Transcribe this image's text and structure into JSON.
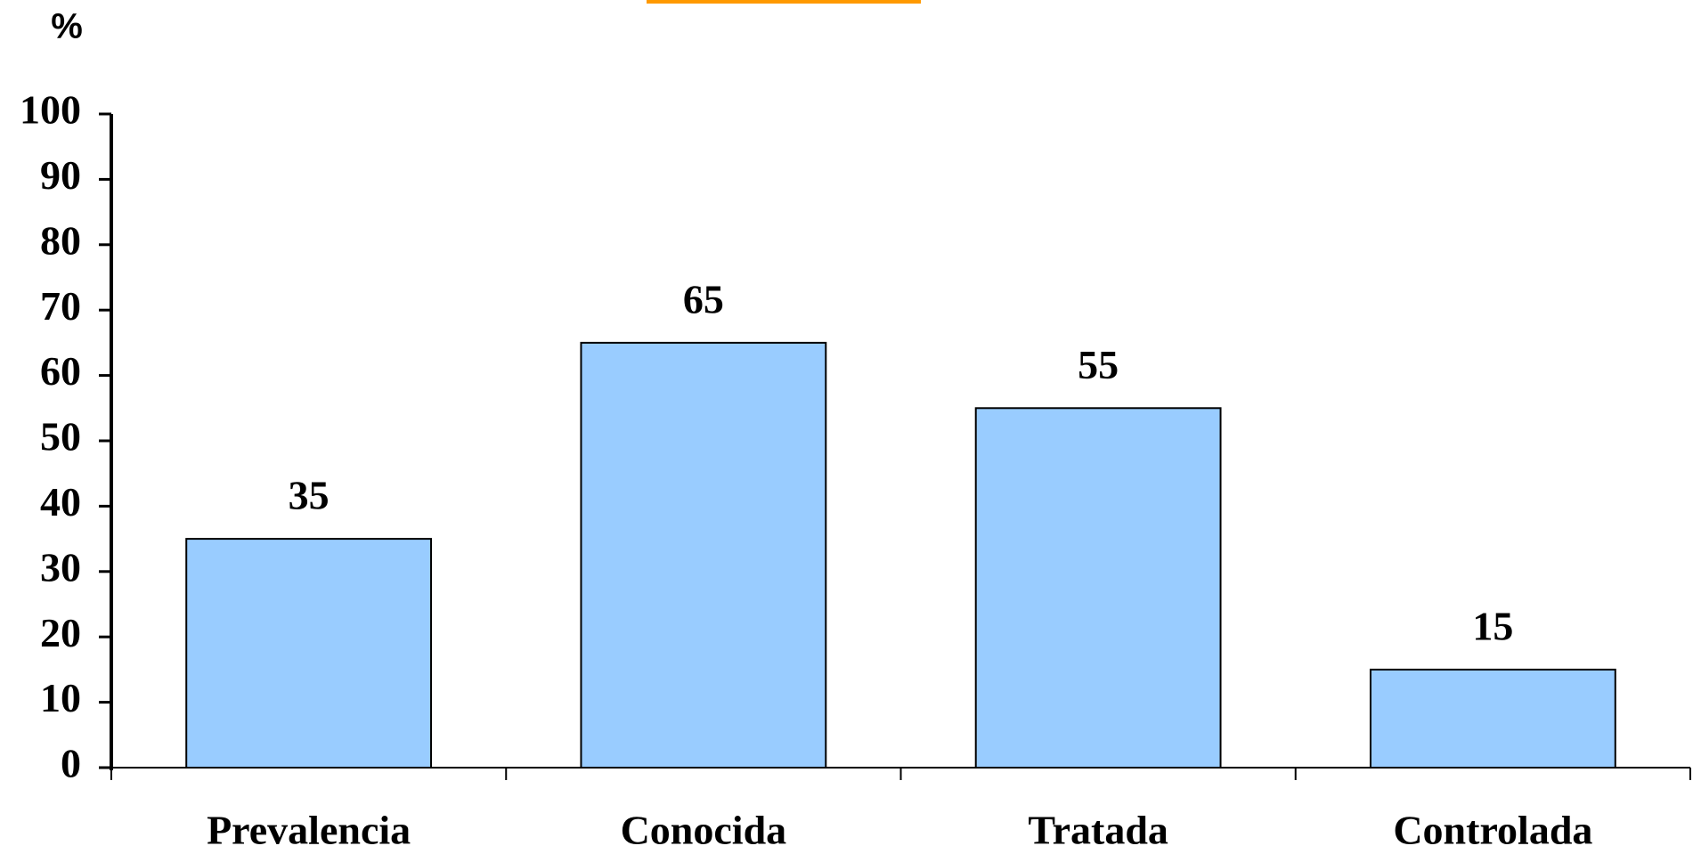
{
  "chart_data": {
    "type": "bar",
    "y_label": "%",
    "categories": [
      "Prevalencia",
      "Conocida",
      "Tratada",
      "Controlada"
    ],
    "values": [
      35,
      65,
      55,
      15
    ],
    "color": "#99ccff",
    "ylim": [
      0,
      100
    ],
    "yticks": [
      0,
      10,
      20,
      30,
      40,
      50,
      60,
      70,
      80,
      90,
      100
    ],
    "grid": false
  }
}
